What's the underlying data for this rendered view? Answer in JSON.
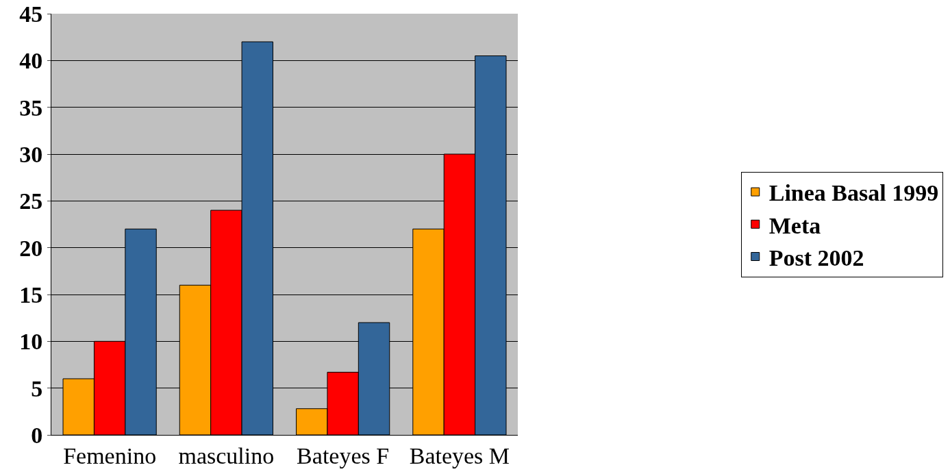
{
  "chart_data": {
    "type": "bar",
    "categories": [
      "Femenino",
      "masculino",
      "Bateyes F",
      "Bateyes M"
    ],
    "series": [
      {
        "name": "Linea Basal 1999",
        "color": "#ffa000",
        "values": [
          6,
          16,
          2.8,
          22
        ]
      },
      {
        "name": "Meta",
        "color": "#ff0000",
        "values": [
          10,
          24,
          6.7,
          30
        ]
      },
      {
        "name": "Post 2002",
        "color": "#336699",
        "values": [
          22,
          42,
          12,
          40.5
        ]
      }
    ],
    "ylim": [
      0,
      45
    ],
    "yticks": [
      0,
      5,
      10,
      15,
      20,
      25,
      30,
      35,
      40,
      45
    ],
    "grid": "y",
    "legend": "right"
  }
}
